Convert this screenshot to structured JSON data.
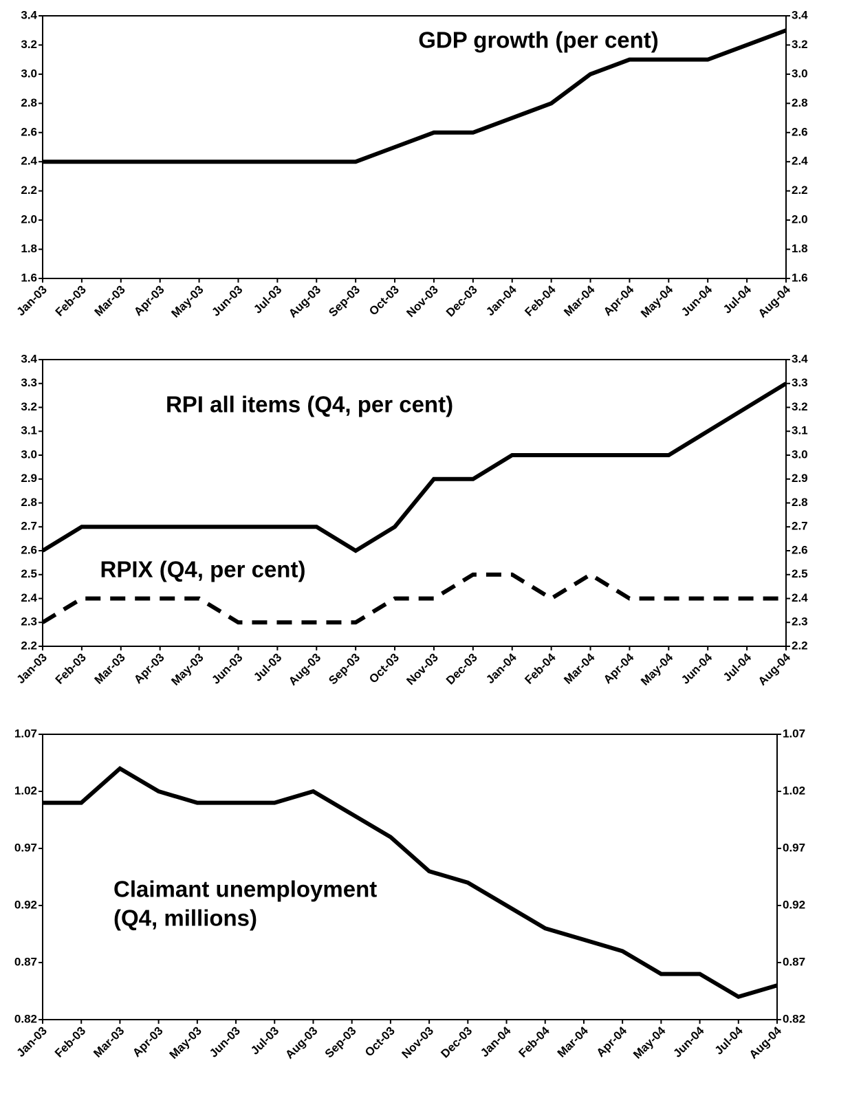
{
  "chart_data": [
    {
      "type": "line",
      "categories": [
        "Jan-03",
        "Feb-03",
        "Mar-03",
        "Apr-03",
        "May-03",
        "Jun-03",
        "Jul-03",
        "Aug-03",
        "Sep-03",
        "Oct-03",
        "Nov-03",
        "Dec-03",
        "Jan-04",
        "Feb-04",
        "Mar-04",
        "Apr-04",
        "May-04",
        "Jun-04",
        "Jul-04",
        "Aug-04"
      ],
      "series": [
        {
          "name": "GDP growth (per cent)",
          "color": "#000000",
          "dash": false,
          "values": [
            2.4,
            2.4,
            2.4,
            2.4,
            2.4,
            2.4,
            2.4,
            2.4,
            2.4,
            2.5,
            2.6,
            2.6,
            2.7,
            2.8,
            3.0,
            3.1,
            3.1,
            3.1,
            3.2,
            3.3
          ]
        }
      ],
      "ylim": [
        1.6,
        3.4
      ],
      "yticks": [
        1.6,
        1.8,
        {
          "value": 2,
          "label": "2.0"
        },
        2.2,
        2.4,
        2.6,
        2.8,
        {
          "value": 3,
          "label": "3.0"
        },
        3.2,
        3.4
      ]
    },
    {
      "type": "line",
      "categories": [
        "Jan-03",
        "Feb-03",
        "Mar-03",
        "Apr-03",
        "May-03",
        "Jun-03",
        "Jul-03",
        "Aug-03",
        "Sep-03",
        "Oct-03",
        "Nov-03",
        "Dec-03",
        "Jan-04",
        "Feb-04",
        "Mar-04",
        "Apr-04",
        "May-04",
        "Jun-04",
        "Jul-04",
        "Aug-04"
      ],
      "series": [
        {
          "name": "RPI all items (Q4, per cent)",
          "color": "#000000",
          "dash": false,
          "values": [
            2.6,
            2.7,
            2.7,
            2.7,
            2.7,
            2.7,
            2.7,
            2.7,
            2.6,
            2.7,
            2.9,
            2.9,
            3.0,
            3.0,
            3.0,
            3.0,
            3.0,
            3.1,
            3.2,
            3.3
          ]
        },
        {
          "name": "RPIX (Q4, per cent)",
          "color": "#000000",
          "dash": true,
          "values": [
            2.3,
            2.4,
            2.4,
            2.4,
            2.4,
            2.3,
            2.3,
            2.3,
            2.3,
            2.4,
            2.4,
            2.5,
            2.5,
            2.4,
            2.5,
            2.4,
            2.4,
            2.4,
            2.4,
            2.4
          ]
        }
      ],
      "ylim": [
        2.2,
        3.4
      ],
      "yticks": [
        2.2,
        2.3,
        2.4,
        2.5,
        2.6,
        2.7,
        2.8,
        2.9,
        {
          "value": 3,
          "label": "3.0"
        },
        3.1,
        3.2,
        3.3,
        3.4
      ]
    },
    {
      "type": "line",
      "categories": [
        "Jan-03",
        "Feb-03",
        "Mar-03",
        "Apr-03",
        "May-03",
        "Jun-03",
        "Jul-03",
        "Aug-03",
        "Sep-03",
        "Oct-03",
        "Nov-03",
        "Dec-03",
        "Jan-04",
        "Feb-04",
        "Mar-04",
        "Apr-04",
        "May-04",
        "Jun-04",
        "Jul-04",
        "Aug-04"
      ],
      "series": [
        {
          "name_lines": [
            "Claimant unemployment",
            "(Q4, millions)"
          ],
          "color": "#000000",
          "dash": false,
          "values": [
            1.01,
            1.01,
            1.04,
            1.02,
            1.01,
            1.01,
            1.01,
            1.02,
            1.0,
            0.98,
            0.95,
            0.94,
            0.92,
            0.9,
            0.89,
            0.88,
            0.86,
            0.86,
            0.84,
            0.85
          ]
        }
      ],
      "ylim": [
        0.82,
        1.07
      ],
      "yticks": [
        0.82,
        0.87,
        0.92,
        0.97,
        1.02,
        1.07
      ]
    }
  ]
}
